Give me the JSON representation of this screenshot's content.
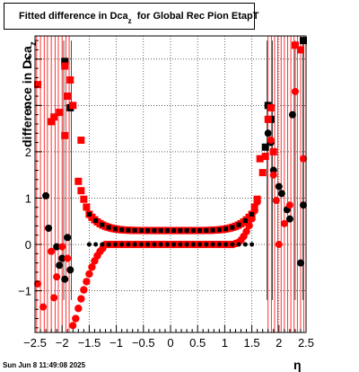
{
  "chart_data": {
    "type": "scatter",
    "title": "Fitted difference in Dca",
    "title_subscript": "z",
    "title_suffix": "for Global Rec Pion EtapT",
    "xlabel": "η",
    "ylabel": "difference in Dca",
    "ylabel_subscript": "z",
    "xlim": [
      -2.5,
      2.5
    ],
    "ylim": [
      -1.9,
      4.5
    ],
    "x_ticks": [
      "−2.5",
      "−2",
      "−1.5",
      "−1",
      "−0.5",
      "0",
      "0.5",
      "1",
      "1.5",
      "2",
      "2.5"
    ],
    "x_tick_values": [
      -2.5,
      -2,
      -1.5,
      -1,
      -0.5,
      0,
      0.5,
      1,
      1.5,
      2,
      2.5
    ],
    "y_ticks": [
      "−1",
      "0",
      "1",
      "2",
      "3",
      "4"
    ],
    "y_tick_values": [
      -1,
      0,
      1,
      2,
      3,
      4
    ],
    "grid": true,
    "series": [
      {
        "marker": "square",
        "color": "#000000",
        "points": [
          [
            -1.95,
            3.95
          ],
          [
            -1.85,
            2.95
          ],
          [
            1.75,
            2.1
          ],
          [
            1.8,
            3.0
          ],
          [
            1.85,
            2.7
          ],
          [
            2.45,
            4.4
          ]
        ]
      },
      {
        "marker": "square",
        "color": "#ff0000",
        "points": [
          [
            -2.45,
            3.45
          ],
          [
            -2.2,
            2.65
          ],
          [
            -2.15,
            2.75
          ],
          [
            -2.05,
            2.85
          ],
          [
            -1.95,
            3.85
          ],
          [
            -1.9,
            3.2
          ],
          [
            -1.85,
            3.55
          ],
          [
            -1.8,
            3.0
          ],
          [
            -1.95,
            2.35
          ],
          [
            -1.65,
            2.25
          ],
          [
            1.65,
            1.85
          ],
          [
            1.7,
            1.55
          ],
          [
            1.75,
            1.9
          ],
          [
            1.8,
            2.7
          ],
          [
            1.85,
            2.95
          ],
          [
            1.9,
            2.0
          ],
          [
            2.3,
            4.3
          ],
          [
            2.4,
            4.2
          ]
        ]
      },
      {
        "marker": "circle",
        "color": "#000000",
        "points": [
          [
            -2.3,
            1.05
          ],
          [
            -2.25,
            0.35
          ],
          [
            -2.1,
            -0.05
          ],
          [
            -2.05,
            -0.45
          ],
          [
            -2.0,
            -0.3
          ],
          [
            -1.95,
            -0.75
          ],
          [
            -1.9,
            0.15
          ],
          [
            -1.85,
            -0.55
          ],
          [
            1.8,
            2.4
          ],
          [
            1.85,
            2.2
          ],
          [
            1.9,
            1.6
          ],
          [
            2.0,
            1.25
          ],
          [
            2.05,
            1.1
          ],
          [
            2.15,
            0.75
          ],
          [
            2.2,
            0.55
          ],
          [
            2.25,
            2.8
          ],
          [
            2.4,
            -0.4
          ],
          [
            2.45,
            0.85
          ]
        ]
      },
      {
        "marker": "circle",
        "color": "#ff0000",
        "points": [
          [
            -2.45,
            -0.85
          ],
          [
            -2.35,
            -1.35
          ],
          [
            -2.2,
            -0.15
          ],
          [
            -2.15,
            -1.15
          ],
          [
            -2.1,
            -0.7
          ],
          [
            -2.0,
            -0.05
          ],
          [
            -1.9,
            -0.3
          ],
          [
            -1.8,
            -1.75
          ],
          [
            -1.75,
            -1.6
          ],
          [
            1.85,
            2.25
          ],
          [
            1.9,
            1.5
          ],
          [
            1.95,
            0.95
          ],
          [
            2.0,
            0.0
          ],
          [
            2.1,
            0.45
          ],
          [
            2.2,
            0.85
          ],
          [
            2.3,
            3.3
          ],
          [
            2.45,
            1.85
          ]
        ]
      }
    ]
  },
  "timestamp": "Sun Jun  8 11:49:08 2025"
}
